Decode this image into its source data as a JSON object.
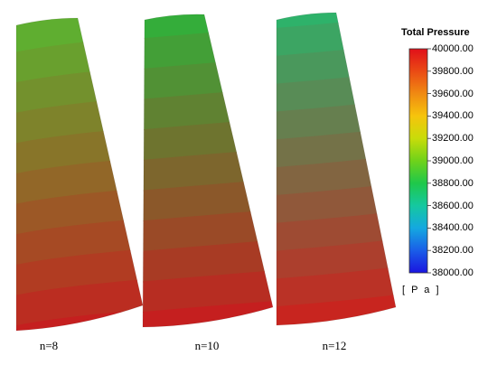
{
  "panels": [
    {
      "caption": "n=8",
      "bottom_color": "#c51f1f",
      "top_color": "#5fae30",
      "bands": 11
    },
    {
      "caption": "n=10",
      "bottom_color": "#c51f1f",
      "top_color": "#34ad3a",
      "bands": 11
    },
    {
      "caption": "n=12",
      "bottom_color": "#c8251f",
      "top_color": "#2eb26a",
      "bands": 12
    }
  ],
  "legend": {
    "title": "Total Pressure",
    "unit": "[ P a ]",
    "ticks": [
      "40000.00",
      "39800.00",
      "39600.00",
      "39400.00",
      "39200.00",
      "39000.00",
      "38800.00",
      "38600.00",
      "38400.00",
      "38200.00",
      "38000.00"
    ],
    "color_stops": [
      "#e0101a",
      "#ea4a14",
      "#f08a12",
      "#f6c40c",
      "#c8dc0a",
      "#6fd21a",
      "#1fc84a",
      "#15c8a0",
      "#14a8e0",
      "#1a5ee8",
      "#1a14e0"
    ]
  }
}
